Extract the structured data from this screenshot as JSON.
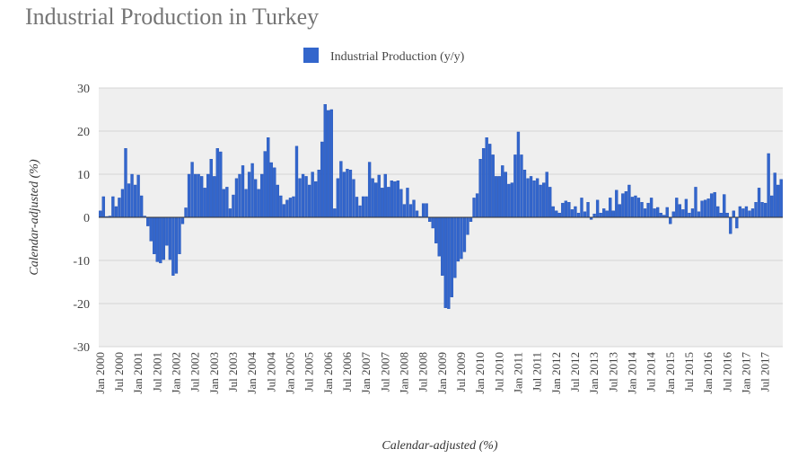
{
  "chart_data": {
    "type": "bar",
    "title": "Industrial Production in Turkey",
    "ylabel": "Calendar-adjusted (%)",
    "xlabel": "Calendar-adjusted (%)",
    "ylim": [
      -30,
      30
    ],
    "yticks": [
      30,
      20,
      10,
      0,
      -10,
      -20,
      -30
    ],
    "grid": true,
    "legend_position": "top",
    "bar_color": "#3366cc",
    "start": "Jan 2000",
    "xtick_labels": [
      "Jan 2000",
      "Jul 2000",
      "Jan 2001",
      "Jul 2001",
      "Jan 2002",
      "Jul 2002",
      "Jan 2003",
      "Jul 2003",
      "Jan 2004",
      "Jul 2004",
      "Jan 2005",
      "Jul 2005",
      "Jan 2006",
      "Jul 2006",
      "Jan 2007",
      "Jul 2007",
      "Jan 2008",
      "Jul 2008",
      "Jan 2009",
      "Jul 2009",
      "Jan 2010",
      "Jul 2010",
      "Jan 2011",
      "Jul 2011",
      "Jan 2012",
      "Jul 2012",
      "Jan 2013",
      "Jul 2013",
      "Jan 2014",
      "Jul 2014",
      "Jan 2015",
      "Jul 2015",
      "Jan 2016",
      "Jul 2016",
      "Jan 2017",
      "Jul 2017"
    ],
    "series": [
      {
        "name": "Industrial Production (y/y)",
        "values": [
          1.5,
          4.8,
          0.2,
          0.3,
          4.8,
          2.5,
          4.5,
          6.5,
          16,
          7.8,
          10,
          7.5,
          9.8,
          5,
          0.3,
          -2,
          -5.5,
          -8.5,
          -10.3,
          -10.6,
          -9.8,
          -6.5,
          -9.8,
          -13.5,
          -13,
          -8.5,
          -1.5,
          2.2,
          10,
          12.8,
          10,
          10,
          9.5,
          6.8,
          10,
          13.5,
          9.5,
          16,
          15.2,
          6.5,
          7,
          2,
          5.2,
          9,
          10,
          12,
          6.5,
          10.5,
          12.5,
          8.8,
          6.5,
          10,
          15.3,
          18.5,
          12.7,
          11.5,
          7.5,
          5,
          3,
          4,
          4.5,
          4.8,
          16.5,
          9,
          10,
          9.5,
          7.5,
          10.5,
          8.3,
          11,
          17.5,
          26.2,
          24.8,
          25,
          2,
          9,
          13,
          10.5,
          11.2,
          11,
          8.8,
          4.7,
          2.7,
          4.8,
          4.8,
          12.8,
          9,
          8,
          9.8,
          6.8,
          10,
          7,
          8.5,
          8.3,
          8.5,
          6.5,
          3,
          6.8,
          3,
          4,
          1.5,
          0.2,
          3.2,
          3.2,
          -1,
          -2.5,
          -6,
          -9,
          -13.5,
          -21,
          -21.2,
          -18.5,
          -14,
          -10.2,
          -9.6,
          -8,
          -4,
          -1,
          4.5,
          5.5,
          13.5,
          16,
          18.5,
          17,
          14.5,
          9.5,
          9.5,
          12,
          10.5,
          7.7,
          8,
          14.5,
          19.8,
          14.5,
          11,
          9,
          9.5,
          8.5,
          9,
          7.5,
          8,
          10.5,
          7,
          2.5,
          1.5,
          1,
          3.3,
          3.8,
          3.5,
          1.8,
          2.5,
          1,
          4.5,
          1.3,
          3.5,
          -0.5,
          0.8,
          4,
          1,
          2,
          1.5,
          4.5,
          1.5,
          6.3,
          3,
          5.5,
          6,
          7.5,
          4.7,
          5,
          4.5,
          3.5,
          2,
          3.3,
          4.5,
          2,
          2.3,
          1,
          0.5,
          2.3,
          -1.5,
          1.3,
          4.5,
          3,
          1.8,
          4.2,
          1,
          2,
          7,
          1.3,
          3.8,
          4,
          4.3,
          5.5,
          5.8,
          2.5,
          1,
          5.3,
          1,
          -3.8,
          1.5,
          -2.5,
          2.5,
          2,
          2.5,
          1.5,
          2,
          3.5,
          6.8,
          3.5,
          3.3,
          14.8,
          5,
          10.3,
          7.5,
          8.8
        ]
      }
    ]
  }
}
